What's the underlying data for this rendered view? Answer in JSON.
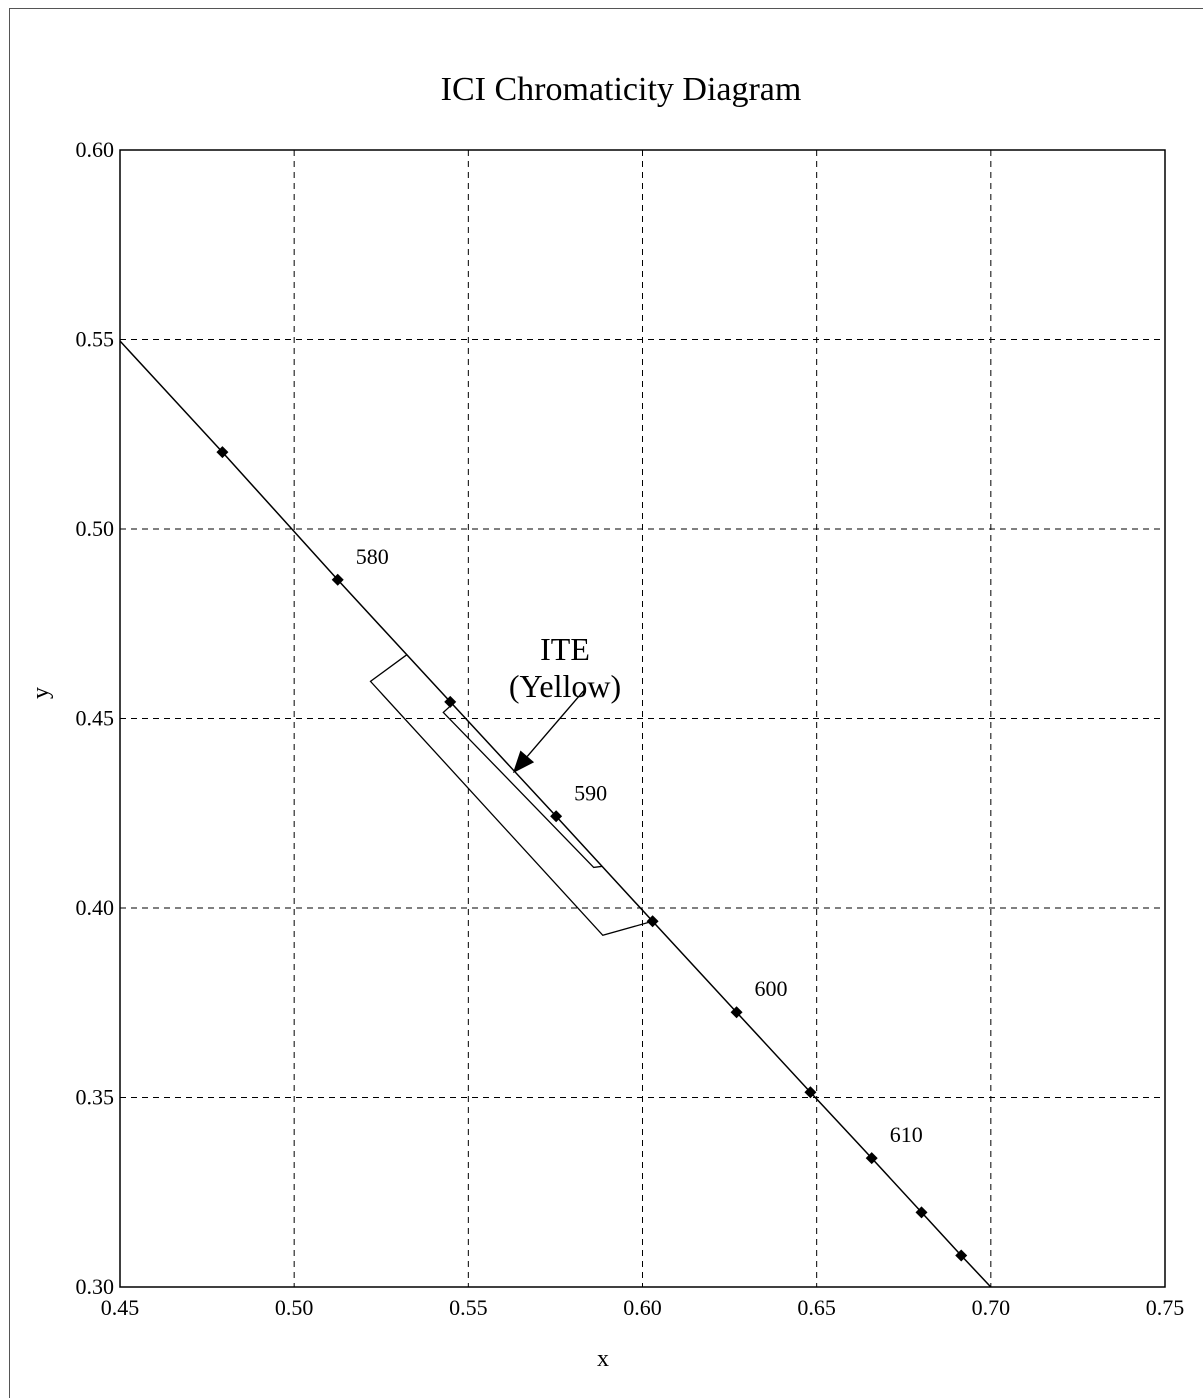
{
  "chart_data": {
    "type": "line",
    "title": "ICI Chromaticity Diagram",
    "xlabel": "x",
    "ylabel": "y",
    "xlim": [
      0.45,
      0.75
    ],
    "ylim": [
      0.3,
      0.6
    ],
    "grid": true,
    "x_ticks": [
      "0.45",
      "0.50",
      "0.55",
      "0.60",
      "0.65",
      "0.70",
      "0.75"
    ],
    "y_ticks": [
      "0.30",
      "0.35",
      "0.40",
      "0.45",
      "0.50",
      "0.55",
      "0.60"
    ],
    "series": [
      {
        "x": [
          0.45,
          0.4794,
          0.5125,
          0.5448,
          0.5752,
          0.6029,
          0.627,
          0.6482,
          0.6658,
          0.6801,
          0.6915,
          0.7
        ],
        "y": [
          0.5496,
          0.5203,
          0.4866,
          0.4544,
          0.4242,
          0.3965,
          0.3725,
          0.3514,
          0.334,
          0.3197,
          0.3083,
          0.3
        ]
      }
    ],
    "markers": {
      "x": [
        0.4794,
        0.5125,
        0.5448,
        0.5752,
        0.6029,
        0.627,
        0.6482,
        0.6658,
        0.6801,
        0.6915
      ],
      "y": [
        0.5203,
        0.4866,
        0.4544,
        0.4242,
        0.3965,
        0.3725,
        0.3514,
        0.334,
        0.3197,
        0.3083
      ]
    },
    "wavelength_labels": [
      {
        "text": "580",
        "x": 0.5125,
        "y": 0.4866
      },
      {
        "text": "590",
        "x": 0.5752,
        "y": 0.4242
      },
      {
        "text": "600",
        "x": 0.627,
        "y": 0.3725
      },
      {
        "text": "610",
        "x": 0.6658,
        "y": 0.334
      }
    ],
    "regions": [
      {
        "x": [
          0.5323,
          0.5219,
          0.5886,
          0.6029
        ],
        "y": [
          0.4668,
          0.4598,
          0.3928,
          0.3965
        ]
      },
      {
        "x": [
          0.5446,
          0.5428,
          0.586,
          0.5885
        ],
        "y": [
          0.4531,
          0.4516,
          0.4107,
          0.411
        ]
      }
    ],
    "annotation": {
      "line1": "ITE",
      "line2": "(Yellow)",
      "arrow_from": {
        "x": 0.5831,
        "y": 0.4573
      },
      "arrow_to": {
        "x": 0.5628,
        "y": 0.4356
      }
    },
    "colors": {
      "line": "#000000",
      "grid": "#000000",
      "background": "#ffffff"
    }
  }
}
